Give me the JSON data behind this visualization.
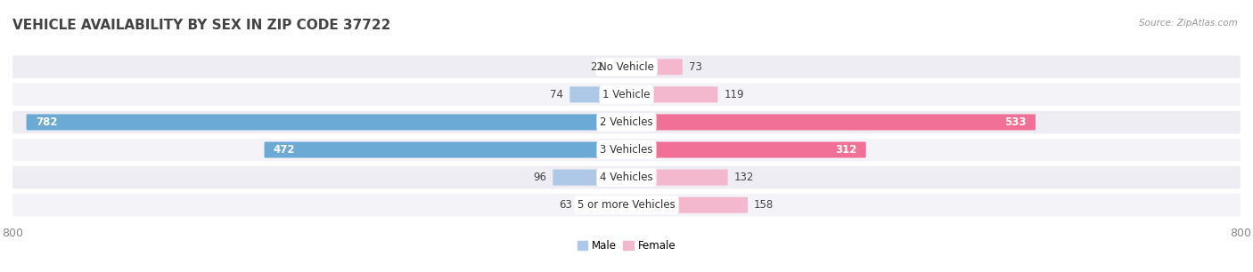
{
  "title": "VEHICLE AVAILABILITY BY SEX IN ZIP CODE 37722",
  "source": "Source: ZipAtlas.com",
  "categories": [
    "No Vehicle",
    "1 Vehicle",
    "2 Vehicles",
    "3 Vehicles",
    "4 Vehicles",
    "5 or more Vehicles"
  ],
  "male_values": [
    22,
    74,
    782,
    472,
    96,
    63
  ],
  "female_values": [
    73,
    119,
    533,
    312,
    132,
    158
  ],
  "male_color_light": "#aec9e8",
  "male_color_dark": "#6aaad4",
  "female_color_light": "#f4b8ce",
  "female_color_dark": "#f07098",
  "row_bg_colors": [
    "#ededf3",
    "#f4f4f8"
  ],
  "xlim": 800,
  "legend_male": "Male",
  "legend_female": "Female",
  "title_fontsize": 11,
  "label_fontsize": 8.5,
  "value_fontsize": 8.5,
  "tick_fontsize": 9,
  "background_color": "#ffffff",
  "large_threshold": 200
}
